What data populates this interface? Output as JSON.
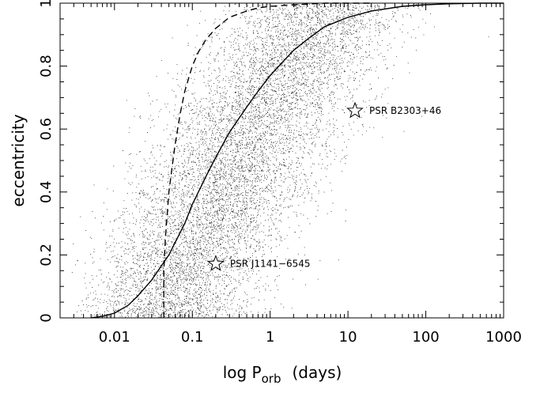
{
  "chart_data": {
    "type": "scatter",
    "title": "",
    "xlabel": "log P",
    "xlabel_subscript": "orb",
    "xlabel_units": "(days)",
    "ylabel": "eccentricity",
    "xscale": "log",
    "xlim": [
      0.002,
      1000
    ],
    "ylim": [
      0,
      1
    ],
    "grid": false,
    "x_ticks": [
      0.01,
      0.1,
      1,
      10,
      100,
      1000
    ],
    "x_tick_labels": [
      "0.01",
      "0.1",
      "1",
      "10",
      "100",
      "1000"
    ],
    "y_ticks": [
      0,
      0.2,
      0.4,
      0.6,
      0.8,
      1
    ],
    "y_tick_labels": [
      "0",
      "0.2",
      "0.4",
      "0.6",
      "0.8",
      "1"
    ],
    "scatter_description": "dense cloud of simulated binary systems (small dots)",
    "series": [
      {
        "style": "solid",
        "x": [
          0.005,
          0.007,
          0.01,
          0.015,
          0.02,
          0.03,
          0.05,
          0.08,
          0.1,
          0.15,
          0.2,
          0.3,
          0.5,
          0.7,
          1,
          2,
          3,
          5,
          10,
          20,
          50,
          100,
          200,
          500,
          1000
        ],
        "y": [
          0.0,
          0.005,
          0.015,
          0.04,
          0.07,
          0.12,
          0.2,
          0.3,
          0.36,
          0.45,
          0.51,
          0.59,
          0.67,
          0.72,
          0.77,
          0.85,
          0.885,
          0.925,
          0.955,
          0.975,
          0.99,
          0.995,
          0.998,
          1.0,
          1.0
        ]
      },
      {
        "style": "dashed",
        "x": [
          0.043,
          0.043,
          0.045,
          0.05,
          0.06,
          0.07,
          0.08,
          0.1,
          0.12,
          0.15,
          0.2,
          0.3,
          0.5,
          0.7,
          1,
          2,
          3,
          5,
          10,
          20
        ],
        "y": [
          0.0,
          0.15,
          0.25,
          0.4,
          0.55,
          0.65,
          0.72,
          0.8,
          0.845,
          0.885,
          0.92,
          0.955,
          0.975,
          0.985,
          0.99,
          0.995,
          0.997,
          1.0,
          1.0,
          1.0
        ]
      }
    ],
    "stars": [
      {
        "label": "PSR J1141−6545",
        "x": 0.2,
        "y": 0.172
      },
      {
        "label": "PSR B2303+46",
        "x": 12.3,
        "y": 0.658
      }
    ]
  }
}
